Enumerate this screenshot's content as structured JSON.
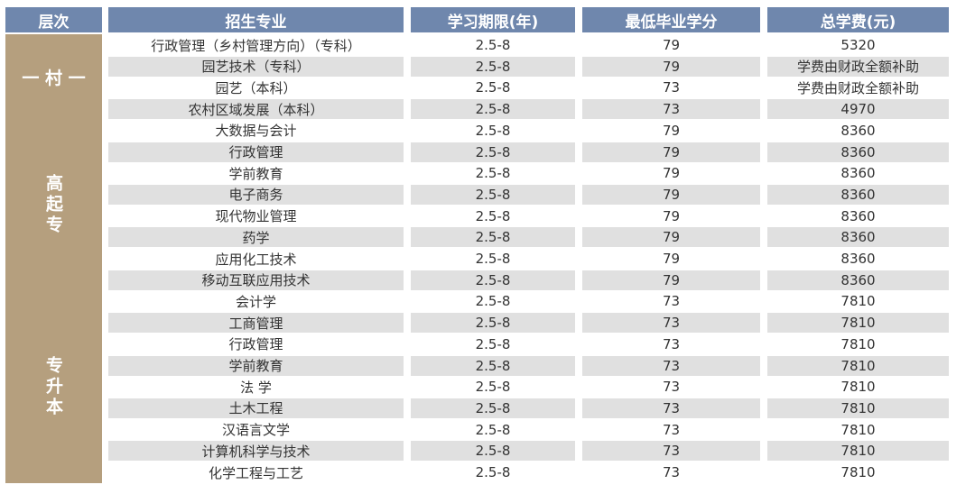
{
  "header": {
    "level": "层次",
    "major": "招生专业",
    "duration": "学习期限(年)",
    "credits": "最低毕业学分",
    "fee": "总学费(元)"
  },
  "groups": [
    {
      "label": "一 村 一",
      "vertical": false,
      "rows": [
        {
          "major": "行政管理（乡村管理方向）（专科）",
          "duration": "2.5-8",
          "credits": "79",
          "fee": "5320"
        },
        {
          "major": "园艺技术（专科）",
          "duration": "2.5-8",
          "credits": "79",
          "fee": "学费由财政全额补助"
        },
        {
          "major": "园艺（本科）",
          "duration": "2.5-8",
          "credits": "73",
          "fee": "学费由财政全额补助"
        },
        {
          "major": "农村区域发展（本科）",
          "duration": "2.5-8",
          "credits": "73",
          "fee": "4970"
        }
      ]
    },
    {
      "label": "高起专",
      "vertical": true,
      "rows": [
        {
          "major": "大数据与会计",
          "duration": "2.5-8",
          "credits": "79",
          "fee": "8360"
        },
        {
          "major": "行政管理",
          "duration": "2.5-8",
          "credits": "79",
          "fee": "8360"
        },
        {
          "major": "学前教育",
          "duration": "2.5-8",
          "credits": "79",
          "fee": "8360"
        },
        {
          "major": "电子商务",
          "duration": "2.5-8",
          "credits": "79",
          "fee": "8360"
        },
        {
          "major": "现代物业管理",
          "duration": "2.5-8",
          "credits": "79",
          "fee": "8360"
        },
        {
          "major": "药学",
          "duration": "2.5-8",
          "credits": "79",
          "fee": "8360"
        },
        {
          "major": "应用化工技术",
          "duration": "2.5-8",
          "credits": "79",
          "fee": "8360"
        },
        {
          "major": "移动互联应用技术",
          "duration": "2.5-8",
          "credits": "79",
          "fee": "8360"
        }
      ]
    },
    {
      "label": "专升本",
      "vertical": true,
      "rows": [
        {
          "major": "会计学",
          "duration": "2.5-8",
          "credits": "73",
          "fee": "7810"
        },
        {
          "major": "工商管理",
          "duration": "2.5-8",
          "credits": "73",
          "fee": "7810"
        },
        {
          "major": "行政管理",
          "duration": "2.5-8",
          "credits": "73",
          "fee": "7810"
        },
        {
          "major": "学前教育",
          "duration": "2.5-8",
          "credits": "73",
          "fee": "7810"
        },
        {
          "major": "法 学",
          "duration": "2.5-8",
          "credits": "73",
          "fee": "7810"
        },
        {
          "major": "土木工程",
          "duration": "2.5-8",
          "credits": "73",
          "fee": "7810"
        },
        {
          "major": "汉语言文学",
          "duration": "2.5-8",
          "credits": "73",
          "fee": "7810"
        },
        {
          "major": "计算机科学与技术",
          "duration": "2.5-8",
          "credits": "73",
          "fee": "7810"
        },
        {
          "major": "化学工程与工艺",
          "duration": "2.5-8",
          "credits": "73",
          "fee": "7810"
        }
      ]
    }
  ]
}
